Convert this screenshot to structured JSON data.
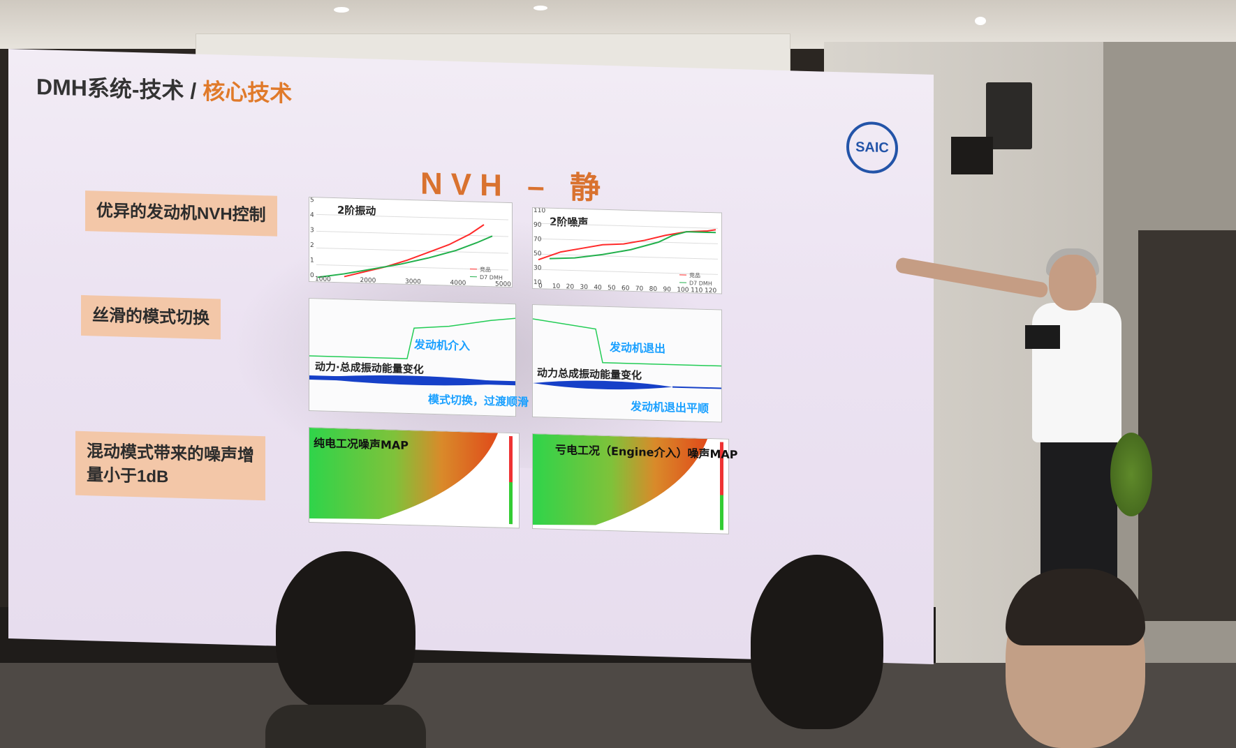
{
  "slide": {
    "title_main": "DMH系统-技术 / ",
    "title_highlight": "核心技术",
    "logo_text": "SAIC",
    "heading": "NVH – 静",
    "tags": [
      "优异的发动机NVH控制",
      "丝滑的模式切换",
      "混动模式带来的噪声增\n量小于1dB"
    ],
    "charts": {
      "vibration": {
        "label": "2阶振动",
        "y_ticks": [
          "0",
          "1",
          "2",
          "3",
          "4",
          "5"
        ],
        "x_ticks": [
          "1000",
          "2000",
          "3000",
          "4000",
          "5000"
        ],
        "legend": [
          "竞品",
          "D7 DMH"
        ]
      },
      "noise": {
        "label": "2阶噪声",
        "y_ticks": [
          "10",
          "30",
          "50",
          "70",
          "90",
          "110"
        ],
        "x_ticks": [
          "0",
          "10",
          "20",
          "30",
          "40",
          "50",
          "60",
          "70",
          "80",
          "90",
          "100",
          "110",
          "120"
        ],
        "legend": [
          "竞品",
          "D7 DMH"
        ]
      },
      "switch_left": {
        "label": "动力·总成振动能量变化",
        "note_top": "发动机介入",
        "note_bottom": "模式切换，过渡顺滑"
      },
      "switch_right": {
        "label": "动力总成振动能量变化",
        "note_top": "发动机退出",
        "note_bottom": "发动机退出平顺"
      },
      "map_left": {
        "label": "纯电工况噪声MAP"
      },
      "map_right": {
        "label": "亏电工况（Engine介入）噪声MAP"
      }
    },
    "colors": {
      "accent": "#d9722f",
      "tag_bg": "#f3c7a8",
      "series_competitor": "#ff2a2a",
      "series_dmh": "#22b04c",
      "note_blue": "#1aa0ff"
    }
  }
}
